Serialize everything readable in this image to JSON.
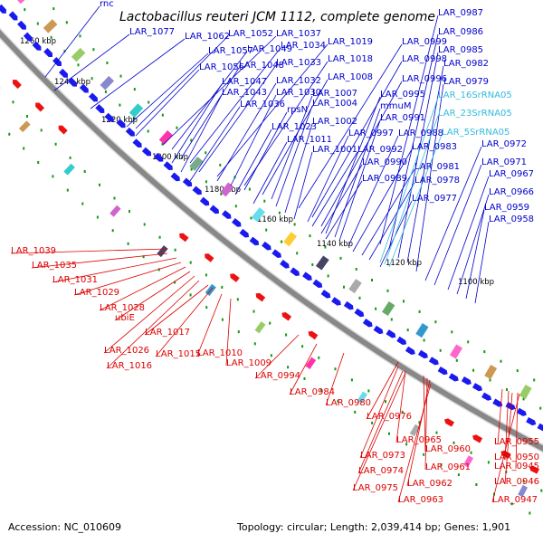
{
  "title": "Lactobacillus reuteri JCM 1112, complete genome",
  "footer": {
    "accession": "Accession: NC_010609",
    "summary": "Topology: circular; Length: 2,039,414 bp; Genes: 1,901"
  },
  "colors": {
    "forward_label": "#0000cc",
    "reverse_label": "#dd0000",
    "rna_label": "#33bbdd",
    "forward_arrow": "#1a1aee",
    "reverse_arrow": "#ee1111",
    "backbone": "#888888",
    "tick": "#119911"
  },
  "scale_ticks": [
    "1260 kbp",
    "1240 kbp",
    "1220 kbp",
    "1200 kbp",
    "1180 kbp",
    "1160 kbp",
    "1140 kbp",
    "1120 kbp",
    "1100 kbp"
  ],
  "forward_labels": [
    "rnc",
    "LAR_1077",
    "LAR_1062",
    "LAR_1052",
    "LAR_1037",
    "LAR_1057",
    "LAR_1049",
    "LAR_1034",
    "LAR_1019",
    "LAR_0999",
    "LAR_1056",
    "LAR_1048",
    "LAR_1033",
    "LAR_1018",
    "LAR_0998",
    "LAR_1008",
    "LAR_0996",
    "LAR_1047",
    "LAR_1032",
    "LAR_1043",
    "LAR_1030",
    "LAR_1007",
    "LAR_0995",
    "LAR_1036",
    "rpsN",
    "LAR_1004",
    "mmuM",
    "LAR_1002",
    "LAR_0991",
    "LAR_1023",
    "LAR_0997",
    "LAR_0988",
    "LAR_1011",
    "LAR_1001",
    "LAR_0992",
    "LAR_0983",
    "LAR_0990",
    "LAR_0981",
    "LAR_0989",
    "LAR_0978",
    "LAR_0977",
    "LAR_0987",
    "LAR_0986",
    "LAR_0985",
    "LAR_0982",
    "LAR_0979",
    "LAR_0972",
    "LAR_0971",
    "LAR_0967",
    "LAR_0966",
    "LAR_0959",
    "LAR_0958"
  ],
  "rna_labels": [
    "LAR_16SrRNA05",
    "LAR_23SrRNA05",
    "LAR_5SrRNA05"
  ],
  "reverse_labels": [
    "LAR_1039",
    "LAR_1035",
    "LAR_1031",
    "LAR_1029",
    "LAR_1028",
    "ubiE",
    "LAR_1017",
    "LAR_1026",
    "LAR_1015",
    "LAR_1010",
    "LAR_1016",
    "LAR_1009",
    "LAR_0994",
    "LAR_0984",
    "LAR_0980",
    "LAR_0976",
    "LAR_0965",
    "LAR_0973",
    "LAR_0960",
    "LAR_0974",
    "LAR_0961",
    "LAR_0975",
    "LAR_0962",
    "LAR_0963",
    "LAR_0955",
    "LAR_0950",
    "LAR_0945",
    "LAR_0946",
    "LAR_0947"
  ]
}
